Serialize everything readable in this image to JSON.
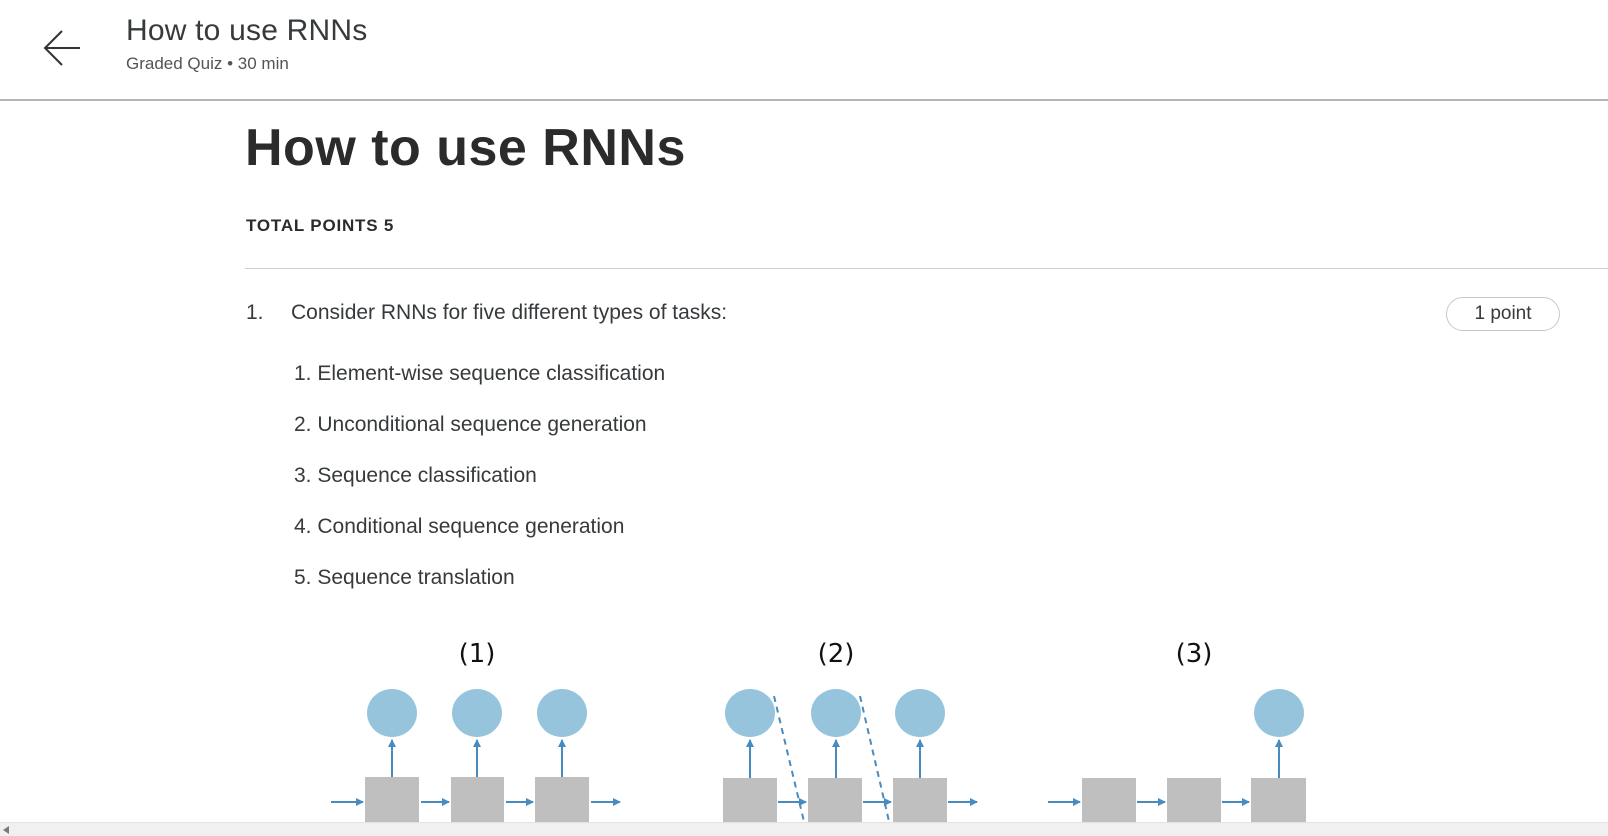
{
  "header": {
    "back_icon": "arrow-left-icon",
    "title": "How to use RNNs",
    "subtitle": "Graded Quiz • 30 min"
  },
  "main": {
    "title": "How to use RNNs",
    "total_points": "TOTAL POINTS 5"
  },
  "question": {
    "number": "1.",
    "text": "Consider RNNs for five different types of tasks:",
    "points": "1 point",
    "tasks": [
      "1. Element-wise sequence classification",
      "2. Unconditional sequence generation",
      "3. Sequence classification",
      "4. Conditional sequence generation",
      "5. Sequence translation"
    ]
  },
  "figure": {
    "panels": [
      {
        "label": "(1)"
      },
      {
        "label": "(2)"
      },
      {
        "label": "(3)"
      }
    ],
    "colors": {
      "output_node": "#97c4dd",
      "hidden_cell": "#bfbfbf",
      "arrow": "#4a8bbf"
    }
  }
}
